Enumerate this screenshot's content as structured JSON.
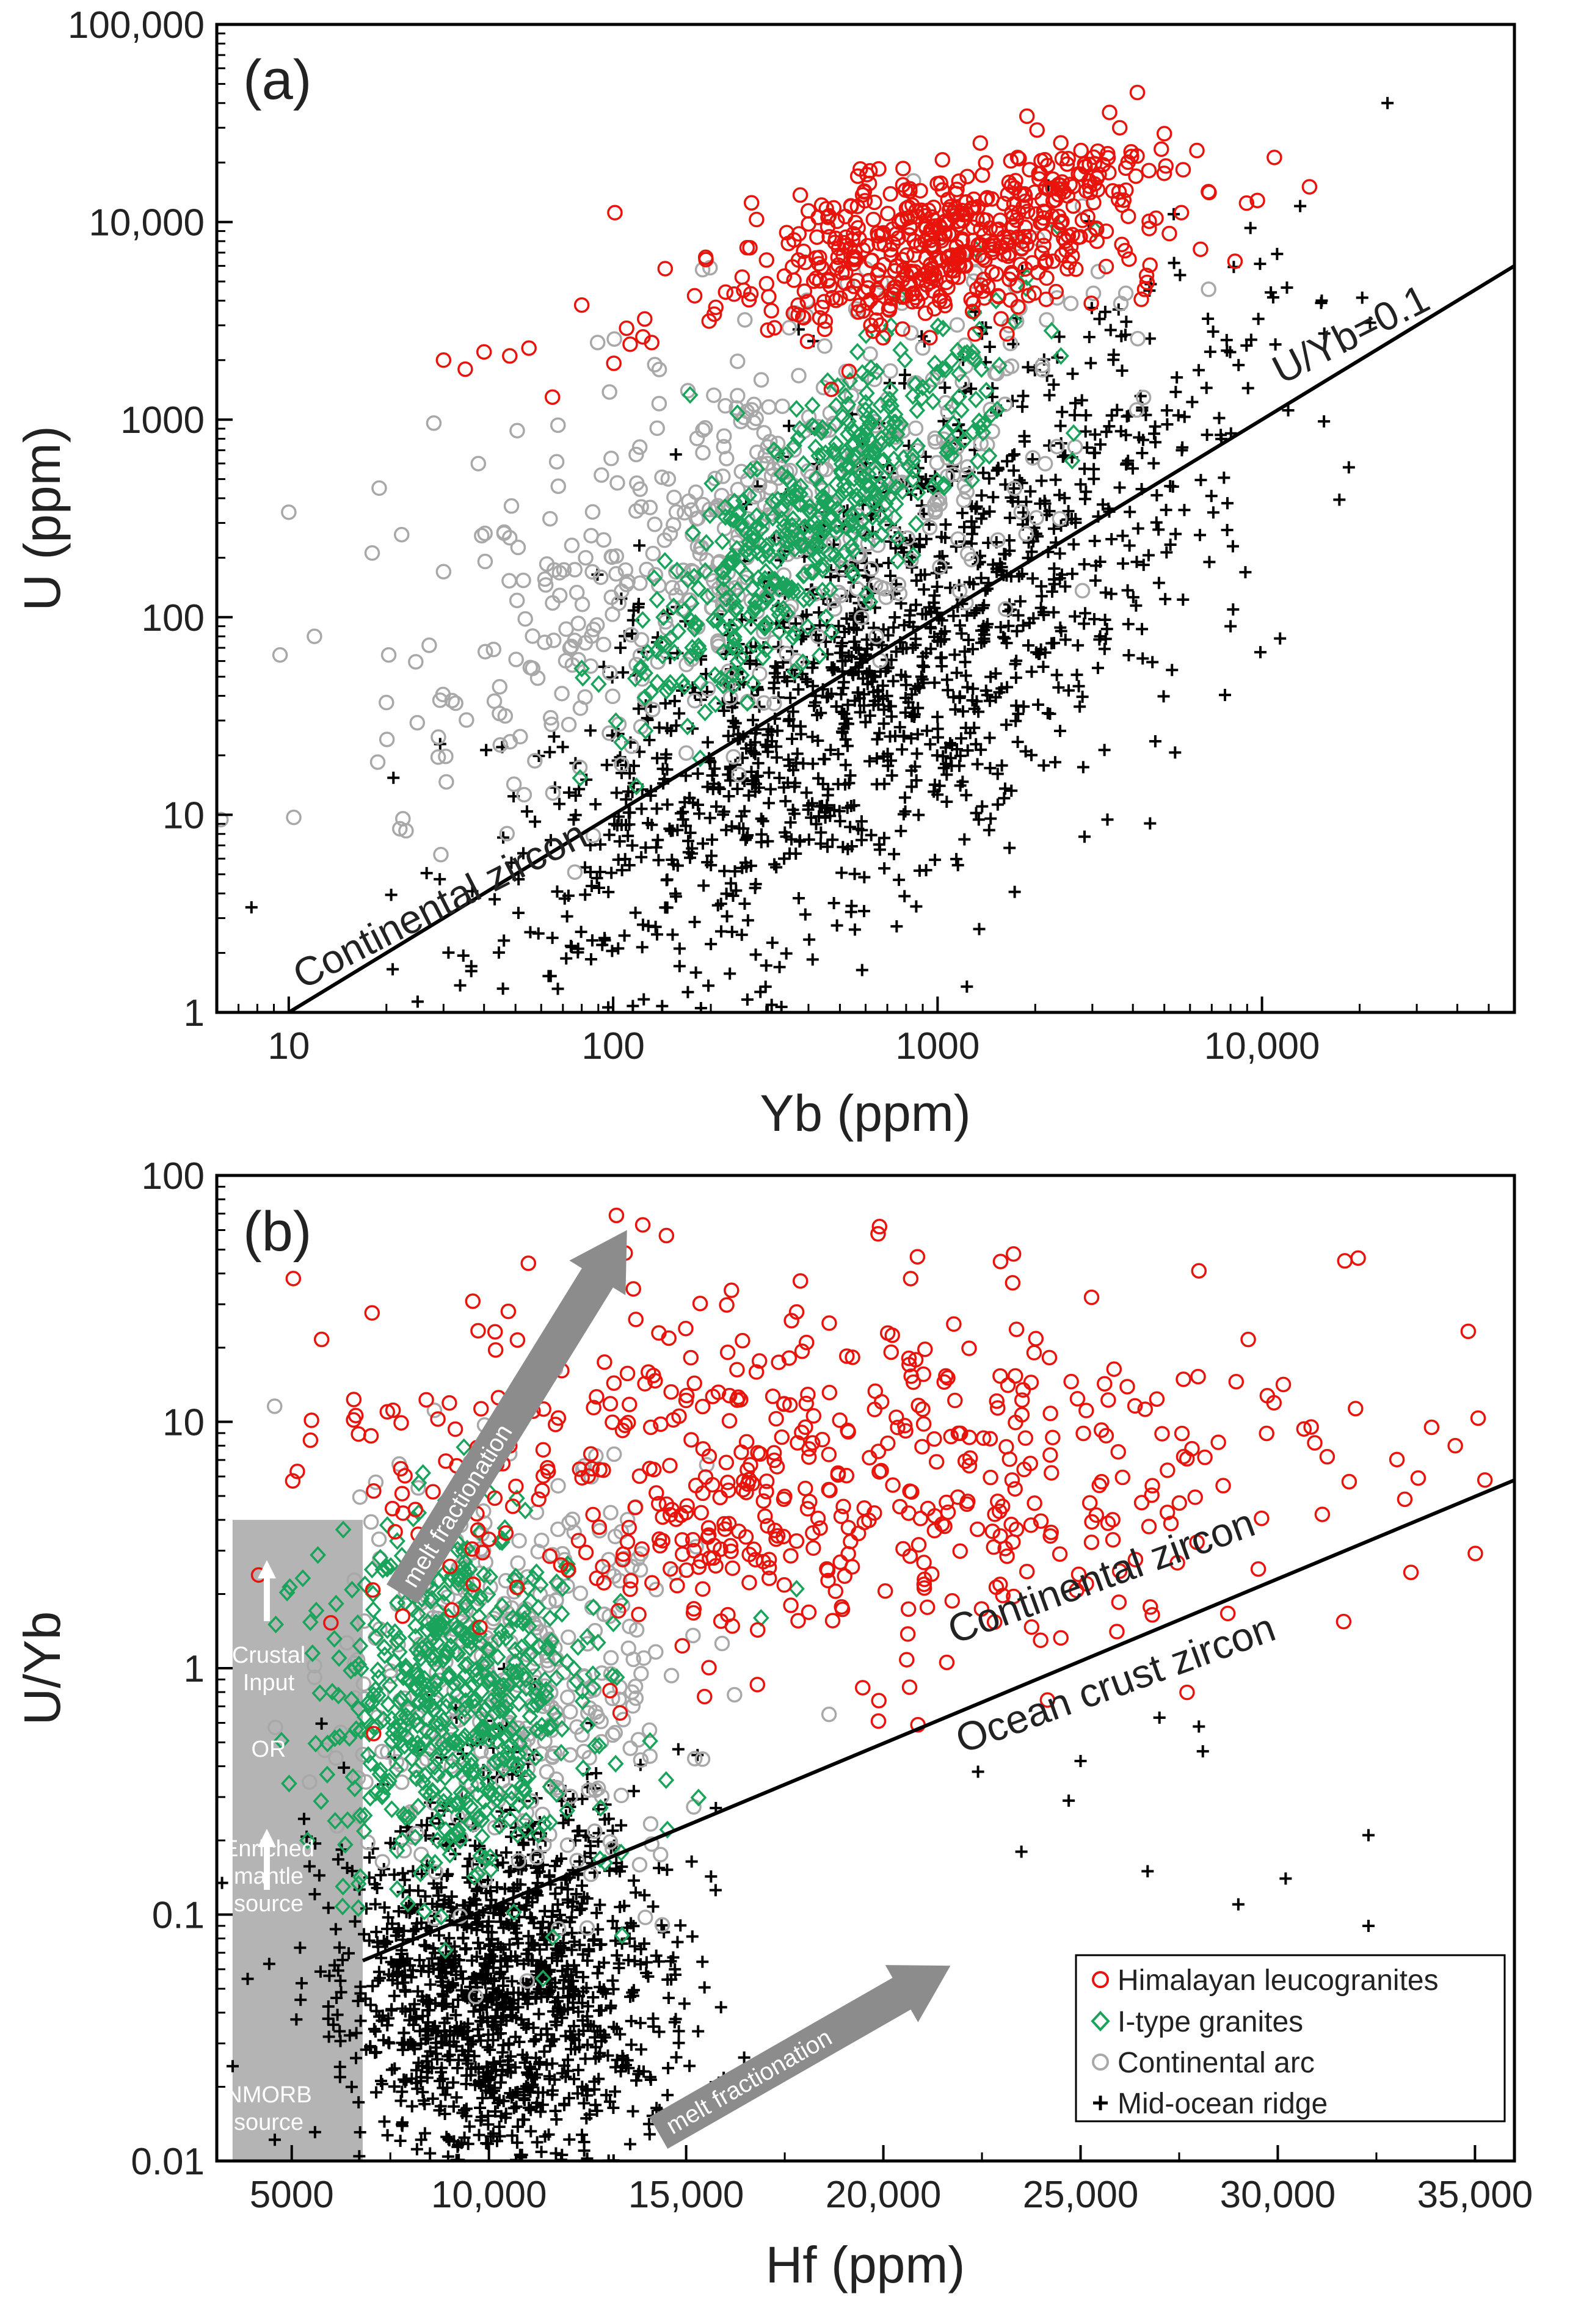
{
  "chart_data": [
    {
      "type": "scatter",
      "panel_label": "(a)",
      "xlabel": "Yb (ppm)",
      "ylabel": "U (ppm)",
      "xscale": "log",
      "yscale": "log",
      "xlim": [
        6,
        60000
      ],
      "ylim": [
        1,
        100000
      ],
      "x_ticks": [
        {
          "value": 10,
          "label": "10"
        },
        {
          "value": 100,
          "label": "100"
        },
        {
          "value": 1000,
          "label": "1000"
        },
        {
          "value": 10000,
          "label": "10,000"
        }
      ],
      "y_ticks": [
        {
          "value": 1,
          "label": "1"
        },
        {
          "value": 10,
          "label": "10"
        },
        {
          "value": 100,
          "label": "100"
        },
        {
          "value": 1000,
          "label": "1000"
        },
        {
          "value": 10000,
          "label": "10,000"
        },
        {
          "value": 100000,
          "label": "100,000"
        }
      ],
      "reference_line": {
        "label": "U/Yb=0.1",
        "ratio": 0.1,
        "x_range": [
          10,
          60000
        ]
      },
      "annotations": [
        {
          "text": "Continental zircon",
          "x": 11,
          "y": 1.3,
          "angle": -27
        },
        {
          "text": "U/Yb=0.1",
          "x": 11500,
          "y": 1500,
          "angle": -27
        }
      ],
      "series": [
        {
          "name": "Mid-ocean ridge",
          "marker": "plus",
          "color": "#000000",
          "n": 1400,
          "center": [
            620,
            55
          ],
          "spread": [
            0.55,
            0.62
          ],
          "slope": 1.1,
          "extras": [
            [
              78,
              2.1
            ],
            [
              8000,
              90
            ],
            [
              4500,
              4500
            ],
            [
              11000,
              2400
            ]
          ]
        },
        {
          "name": "Continental arc",
          "marker": "circle",
          "color": "#a8a8a8",
          "n": 520,
          "center": [
            260,
            280
          ],
          "spread": [
            0.5,
            0.48
          ],
          "slope": 0.8,
          "extras": [
            [
              10,
              340
            ],
            [
              12,
              80
            ],
            [
              20,
              37
            ],
            [
              22,
              8.5
            ],
            [
              28,
              960
            ],
            [
              19,
              450
            ],
            [
              30,
              170
            ]
          ]
        },
        {
          "name": "I-type granites",
          "marker": "diamond",
          "color": "#1aa35a",
          "n": 480,
          "center": [
            420,
            330
          ],
          "spread": [
            0.28,
            0.3
          ],
          "slope": 1.4,
          "extras": [
            [
              80,
              55
            ],
            [
              2400,
              2100
            ],
            [
              2600,
              620
            ]
          ]
        },
        {
          "name": "Himalayan leucogranites",
          "marker": "circle",
          "color": "#e8140c",
          "n": 560,
          "center": [
            1100,
            8000
          ],
          "spread": [
            0.35,
            0.2
          ],
          "slope": 0.35,
          "extras": [
            [
              30,
              2000
            ],
            [
              35,
              1800
            ],
            [
              40,
              2200
            ],
            [
              48,
              2100
            ],
            [
              55,
              2300
            ],
            [
              65,
              1300
            ],
            [
              80,
              3800
            ],
            [
              110,
              2900
            ],
            [
              6300,
              23000
            ],
            [
              5000,
              28000
            ]
          ]
        }
      ]
    },
    {
      "type": "scatter",
      "panel_label": "(b)",
      "xlabel": "Hf (ppm)",
      "ylabel": "U/Yb",
      "xscale": "linear",
      "yscale": "log",
      "xlim": [
        3100,
        36000
      ],
      "ylim": [
        0.01,
        100
      ],
      "x_ticks": [
        {
          "value": 5000,
          "label": "5000"
        },
        {
          "value": 10000,
          "label": "10,000"
        },
        {
          "value": 15000,
          "label": "15,000"
        },
        {
          "value": 20000,
          "label": "20,000"
        },
        {
          "value": 25000,
          "label": "25,000"
        },
        {
          "value": 30000,
          "label": "30,000"
        },
        {
          "value": 35000,
          "label": "35,000"
        }
      ],
      "y_ticks": [
        {
          "value": 0.01,
          "label": "0.01"
        },
        {
          "value": 0.1,
          "label": "0.1"
        },
        {
          "value": 1,
          "label": "1"
        },
        {
          "value": 10,
          "label": "10"
        },
        {
          "value": 100,
          "label": "100"
        }
      ],
      "reference_line": {
        "label": "",
        "from": [
          6800,
          0.065
        ],
        "to": [
          36000,
          5.8
        ]
      },
      "annotations": [
        {
          "text": "Continental zircon",
          "x": 21800,
          "y": 1.25,
          "angle": -20
        },
        {
          "text": "Ocean crust zircon",
          "x": 22000,
          "y": 0.45,
          "angle": -20
        }
      ],
      "side_box": {
        "x_range": [
          3500,
          6800
        ],
        "y_range": [
          0.01,
          4.0
        ],
        "color": "#b4b4b4",
        "labels": [
          "Crustal",
          "Input",
          "OR",
          "Enriched",
          "mantle",
          "source",
          "NMORB",
          "source"
        ]
      },
      "arrows": [
        {
          "label": "melt fractionation",
          "from": [
            7800,
            2.0
          ],
          "to": [
            13500,
            60
          ]
        },
        {
          "label": "melt fractionation",
          "from": [
            14300,
            0.013
          ],
          "to": [
            21700,
            0.062
          ]
        }
      ],
      "legend": {
        "position": "bottom-right",
        "entries": [
          "Himalayan leucogranites",
          "I-type granites",
          "Continental arc",
          "Mid-ocean ridge"
        ]
      },
      "series": [
        {
          "name": "Mid-ocean ridge",
          "marker": "plus",
          "color": "#000000",
          "n": 1300,
          "center": [
            10300,
            0.05
          ],
          "spread": [
            2100,
            0.42
          ],
          "slope": 0,
          "extras": [
            [
              32300,
              0.09
            ],
            [
              32300,
              0.21
            ],
            [
              28000,
              0.58
            ],
            [
              28100,
              0.46
            ],
            [
              30200,
              0.14
            ],
            [
              29000,
              0.11
            ],
            [
              26700,
              0.15
            ],
            [
              27000,
              0.63
            ],
            [
              24700,
              0.29
            ],
            [
              25000,
              0.42
            ],
            [
              22400,
              0.38
            ],
            [
              23500,
              0.18
            ]
          ]
        },
        {
          "name": "Continental arc",
          "marker": "circle",
          "color": "#a8a8a8",
          "n": 380,
          "center": [
            10500,
            0.9
          ],
          "spread": [
            2200,
            0.45
          ],
          "slope": 0,
          "extras": []
        },
        {
          "name": "I-type granites",
          "marker": "diamond",
          "color": "#1aa35a",
          "n": 560,
          "center": [
            9300,
            0.75
          ],
          "spread": [
            1700,
            0.38
          ],
          "slope": 0,
          "extras": [
            [
              5400,
              0.2
            ],
            [
              6100,
              0.24
            ],
            [
              5900,
              0.37
            ],
            [
              6300,
              0.13
            ],
            [
              6200,
              1.1
            ],
            [
              16900,
              1.6
            ],
            [
              17800,
              2.1
            ]
          ]
        },
        {
          "name": "Himalayan leucogranites",
          "marker": "circle",
          "color": "#e8140c",
          "n": 560,
          "center": [
            18500,
            6.0
          ],
          "spread": [
            6500,
            0.38
          ],
          "slope": 0,
          "extras": [
            [
              11000,
              44
            ],
            [
              13900,
              63
            ],
            [
              14500,
              57
            ],
            [
              23300,
              48
            ],
            [
              31700,
              45
            ],
            [
              28000,
              41
            ],
            [
              34500,
              8.0
            ],
            [
              33900,
              9.5
            ]
          ]
        }
      ]
    }
  ]
}
